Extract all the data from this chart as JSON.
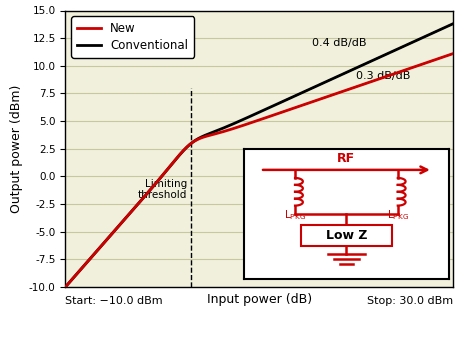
{
  "xlabel": "Input power (dB)",
  "ylabel": "Output power (dBm)",
  "xlim": [
    -10,
    30
  ],
  "ylim": [
    -10,
    15
  ],
  "yticks": [
    -10,
    -7.5,
    -5,
    -2.5,
    0,
    2.5,
    5,
    7.5,
    10,
    12.5,
    15
  ],
  "ytick_labels": [
    "-10.0",
    "-7.5",
    "-5.0",
    "-2.5",
    "0.0",
    "2.5",
    "5.0",
    "7.5",
    "10.0",
    "12.5",
    "15.0"
  ],
  "start_label": "Start: −10.0 dBm",
  "stop_label": "Stop: 30.0 dBm",
  "limiting_threshold_x": 3,
  "label_04": "0.4 dB/dB",
  "label_03": "0.3 dB/dB",
  "new_color": "#cc0000",
  "conv_color": "#000000",
  "grid_color": "#c8c8a0",
  "bg_color": "#f0f0dc",
  "inset_bg": "#ffffff",
  "rf_color": "#cc0000",
  "legend_new": "New",
  "legend_conv": "Conventional"
}
